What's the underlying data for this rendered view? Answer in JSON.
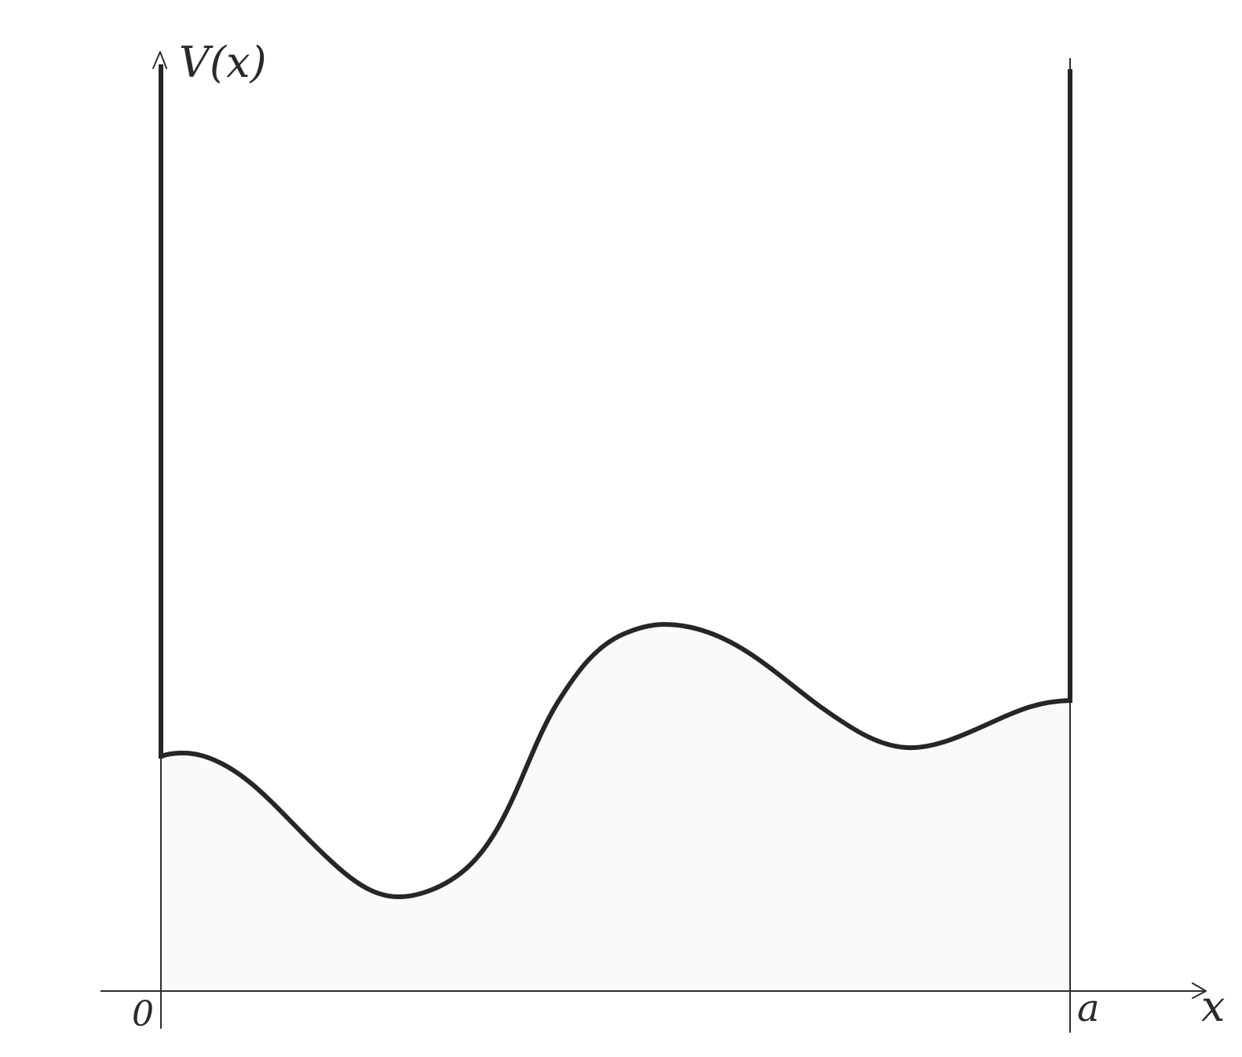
{
  "axes": {
    "y_label": "V(x)",
    "x_label": "x",
    "origin_label": "0",
    "wall_label": "a"
  },
  "colors": {
    "stroke": "#262626",
    "thin_stroke": "#2e2e2e",
    "fill": "#fafafa",
    "background": "#ffffff"
  }
}
